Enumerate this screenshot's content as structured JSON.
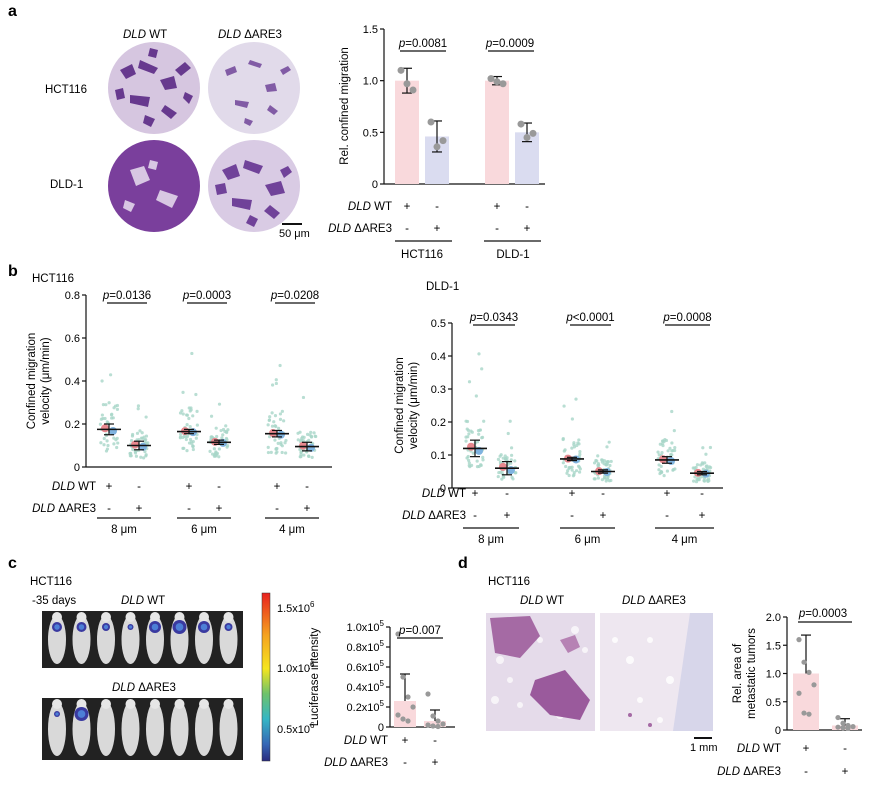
{
  "panels": {
    "a": {
      "letter": "a",
      "col_headers": [
        {
          "gene": "DLD",
          "variant": "WT"
        },
        {
          "gene": "DLD",
          "variant": "ΔARE3"
        }
      ],
      "row_labels": [
        "HCT116",
        "DLD-1"
      ],
      "scale_bar": "50 μm"
    },
    "b": {
      "letter": "b"
    },
    "c": {
      "letter": "c",
      "cell_line": "HCT116",
      "time": "-35 days",
      "group_wt": {
        "gene": "DLD",
        "variant": "WT"
      },
      "group_mut": {
        "gene": "DLD",
        "variant": "ΔARE3"
      },
      "colorbar_ticks": [
        "1.5x10",
        "1.0x10",
        "0.5x10"
      ],
      "colorbar_exp": "6",
      "colors": {
        "top": "#e8211f",
        "mid": "#f5e51e",
        "low": "#35b6c5",
        "bottom": "#2a2b7f"
      }
    },
    "d": {
      "letter": "d",
      "cell_line": "HCT116",
      "col_headers": [
        {
          "gene": "DLD",
          "variant": "WT"
        },
        {
          "gene": "DLD",
          "variant": "ΔARE3"
        }
      ],
      "scale_bar": "1 mm"
    }
  },
  "chart_data": [
    {
      "id": "a-bar",
      "type": "bar",
      "ylabel": "Rel. confined migration",
      "ylim": [
        0,
        1.5
      ],
      "yticks": [
        "0",
        "0.5",
        "1.0",
        "1.5"
      ],
      "groups": [
        "HCT116",
        "DLD-1"
      ],
      "conditions": [
        {
          "gene": "DLD",
          "variant": "WT"
        },
        {
          "gene": "DLD",
          "variant": "ΔARE3"
        }
      ],
      "signs": [
        [
          "+",
          "-",
          "+",
          "-"
        ],
        [
          "-",
          "+",
          "-",
          "+"
        ]
      ],
      "series": [
        {
          "values": [
            1.0,
            1.0
          ],
          "sd": [
            0.12,
            0.04
          ],
          "color": "#f9d9dc"
        },
        {
          "values": [
            0.46,
            0.5
          ],
          "sd": [
            0.15,
            0.09
          ],
          "color": "#dadcf0"
        }
      ],
      "points": [
        [
          1.1,
          0.97,
          0.91
        ],
        [
          0.6,
          0.36,
          0.42
        ],
        [
          1.02,
          0.99,
          0.97
        ],
        [
          0.58,
          0.45,
          0.49
        ]
      ],
      "pvalues": [
        "p=0.0081",
        "p=0.0009"
      ]
    },
    {
      "id": "b-left",
      "type": "scatter",
      "title": "HCT116",
      "ylabel": "Confined migration velocity (μm/min)",
      "ylim": [
        0,
        0.8
      ],
      "yticks": [
        "0",
        "0.2",
        "0.4",
        "0.6",
        "0.8"
      ],
      "groups": [
        "8 μm",
        "6 μm",
        "4 μm"
      ],
      "conditions": [
        {
          "gene": "DLD",
          "variant": "WT"
        },
        {
          "gene": "DLD",
          "variant": "ΔARE3"
        }
      ],
      "signs": [
        [
          "+",
          "-",
          "+",
          "-",
          "+",
          "-"
        ],
        [
          "-",
          "+",
          "-",
          "+",
          "-",
          "+"
        ]
      ],
      "means": [
        0.175,
        0.1,
        0.165,
        0.115,
        0.155,
        0.095
      ],
      "err": [
        0.025,
        0.02,
        0.01,
        0.01,
        0.015,
        0.02
      ],
      "pvalues": [
        "p=0.0136",
        "p=0.0003",
        "p=0.0208"
      ]
    },
    {
      "id": "b-right",
      "type": "scatter",
      "title": "DLD-1",
      "ylabel": "Confined migration velocity (μm/min)",
      "ylim": [
        0,
        0.5
      ],
      "yticks": [
        "0",
        "0.1",
        "0.2",
        "0.3",
        "0.4",
        "0.5"
      ],
      "groups": [
        "8 μm",
        "6 μm",
        "4 μm"
      ],
      "conditions": [
        {
          "gene": "DLD",
          "variant": "WT"
        },
        {
          "gene": "DLD",
          "variant": "ΔARE3"
        }
      ],
      "signs": [
        [
          "+",
          "-",
          "+",
          "-",
          "+",
          "-"
        ],
        [
          "-",
          "+",
          "-",
          "+",
          "-",
          "+"
        ]
      ],
      "means": [
        0.12,
        0.06,
        0.088,
        0.05,
        0.085,
        0.045
      ],
      "err": [
        0.025,
        0.02,
        0.005,
        0.005,
        0.01,
        0.005
      ],
      "pvalues": [
        "p=0.0343",
        "p<0.0001",
        "p=0.0008"
      ]
    },
    {
      "id": "c-bar",
      "type": "bar",
      "ylabel": "Luciferase intensity",
      "ylim": [
        0,
        1000000
      ],
      "yticks": [
        "0",
        "0.2x10",
        "0.4x10",
        "0.6x10",
        "0.8x10",
        "1.0x10"
      ],
      "ytick_exp": "5",
      "conditions": [
        {
          "gene": "DLD",
          "variant": "WT"
        },
        {
          "gene": "DLD",
          "variant": "ΔARE3"
        }
      ],
      "signs": [
        [
          "+",
          "-"
        ],
        [
          "-",
          "+"
        ]
      ],
      "values": [
        260000,
        60000
      ],
      "sd": [
        270000,
        110000
      ],
      "points": [
        [
          930000,
          500000,
          300000,
          200000,
          120000,
          80000,
          60000
        ],
        [
          330000,
          110000,
          60000,
          30000,
          20000,
          10000,
          5000
        ]
      ],
      "pvalues": [
        "p=0.007"
      ]
    },
    {
      "id": "d-bar",
      "type": "bar",
      "ylabel": "Rel. area of metastatic tumors",
      "ylim": [
        0,
        2.0
      ],
      "yticks": [
        "0",
        "0.5",
        "1.0",
        "1.5",
        "2.0"
      ],
      "conditions": [
        {
          "gene": "DLD",
          "variant": "WT"
        },
        {
          "gene": "DLD",
          "variant": "ΔARE3"
        }
      ],
      "signs": [
        [
          "+",
          "-"
        ],
        [
          "-",
          "+"
        ]
      ],
      "values": [
        1.0,
        0.08
      ],
      "sd": [
        0.68,
        0.12
      ],
      "points": [
        [
          1.6,
          1.2,
          1.02,
          0.8,
          0.65,
          0.3,
          0.28
        ],
        [
          0.22,
          0.12,
          0.08,
          0.06,
          0.05,
          0.04,
          0.03
        ]
      ],
      "pvalues": [
        "p=0.0003"
      ]
    }
  ]
}
